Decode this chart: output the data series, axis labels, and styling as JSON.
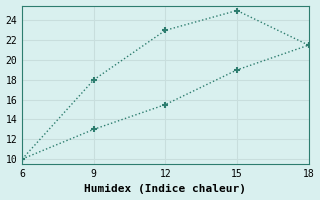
{
  "line1_x": [
    6,
    9,
    12,
    15,
    18
  ],
  "line1_y": [
    10,
    18,
    23,
    25,
    21.5
  ],
  "line2_x": [
    6,
    9,
    12,
    15,
    18
  ],
  "line2_y": [
    10,
    13,
    15.5,
    19,
    21.5
  ],
  "color": "#2d7d6f",
  "bg_color": "#d9f0ef",
  "grid_color": "#c8dedd",
  "xlabel": "Humidex (Indice chaleur)",
  "xlim": [
    6,
    18
  ],
  "ylim": [
    9.5,
    25.5
  ],
  "xticks": [
    6,
    9,
    12,
    15,
    18
  ],
  "yticks": [
    10,
    12,
    14,
    16,
    18,
    20,
    22,
    24
  ],
  "marker": "+",
  "markersize": 5,
  "markeredgewidth": 1.5,
  "linewidth": 1.0,
  "font_family": "monospace",
  "xlabel_fontsize": 8,
  "tick_fontsize": 7
}
